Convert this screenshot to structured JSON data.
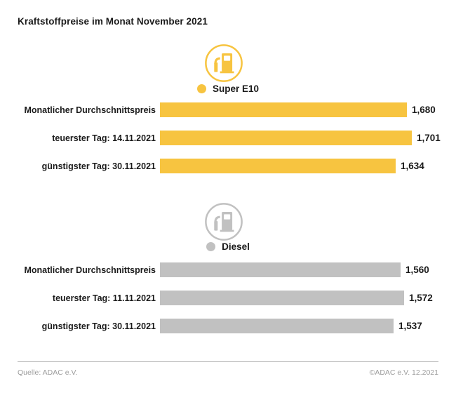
{
  "title": "Kraftstoffpreise im Monat November 2021",
  "chart_data": {
    "type": "bar",
    "orientation": "horizontal",
    "unit": "Euro pro Liter (Preis mit Dezimalkomma)",
    "legend_position": "above each section, centered",
    "grid": false,
    "sections": [
      {
        "fuel": "Super E10",
        "color": "#F7C440",
        "icon": "fuel-pump-icon",
        "rows": [
          {
            "label": "Monatlicher Durchschnittspreis",
            "value": "1,680",
            "value_num": 1.68
          },
          {
            "label": "teuerster Tag: 14.11.2021",
            "value": "1,701",
            "value_num": 1.701
          },
          {
            "label": "günstigster Tag: 30.11.2021",
            "value": "1,634",
            "value_num": 1.634
          }
        ]
      },
      {
        "fuel": "Diesel",
        "color": "#C1C1C1",
        "icon": "fuel-pump-icon",
        "rows": [
          {
            "label": "Monatlicher Durchschnittspreis",
            "value": "1,560",
            "value_num": 1.56
          },
          {
            "label": "teuerster Tag: 11.11.2021",
            "value": "1,572",
            "value_num": 1.572
          },
          {
            "label": "günstigster Tag: 30.11.2021",
            "value": "1,537",
            "value_num": 1.537
          }
        ]
      }
    ]
  },
  "footer": {
    "source": "Quelle: ADAC e.V.",
    "copyright": "©ADAC e.V. 12.2021"
  }
}
